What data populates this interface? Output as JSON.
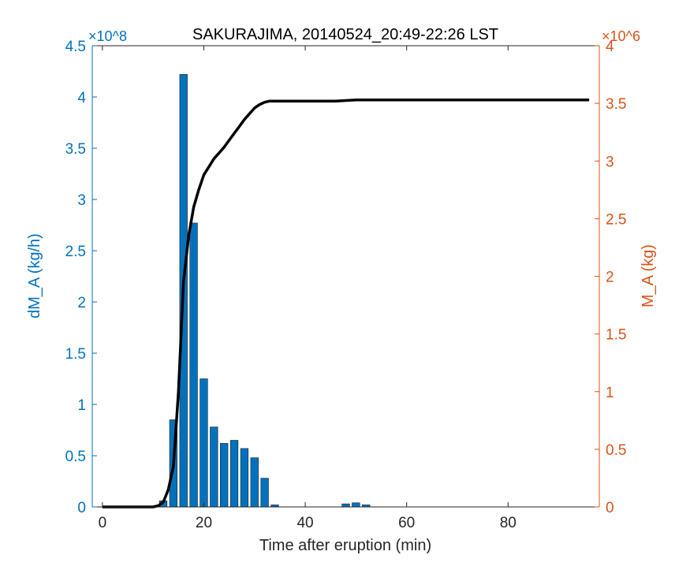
{
  "chart_data": {
    "type": "bar",
    "title": "SAKURAJIMA, 20140524_20:49-22:26 LST",
    "xlabel": "Time after eruption (min)",
    "ylabel_left": "dM_A (kg/h)",
    "ylabel_right": "M_A (kg)",
    "left_axis_exponent": "×10^8",
    "right_axis_exponent": "×10^6",
    "xlim": [
      -2,
      98
    ],
    "ylim_left": [
      0,
      4.5
    ],
    "ylim_right": [
      0,
      4
    ],
    "x_ticks": [
      0,
      20,
      40,
      60,
      80
    ],
    "y_left_ticks": [
      0,
      0.5,
      1,
      1.5,
      2,
      2.5,
      3,
      3.5,
      4,
      4.5
    ],
    "y_right_ticks": [
      0,
      0.5,
      1,
      1.5,
      2,
      2.5,
      3,
      3.5,
      4
    ],
    "x_tick_labels": [
      "0",
      "20",
      "40",
      "60",
      "80"
    ],
    "y_left_tick_labels": [
      "0",
      "0.5",
      "1",
      "1.5",
      "2",
      "2.5",
      "3",
      "3.5",
      "4",
      "4.5"
    ],
    "y_right_tick_labels": [
      "0",
      "0.5",
      "1",
      "1.5",
      "2",
      "2.5",
      "3",
      "3.5",
      "4"
    ],
    "bar_series": {
      "name": "dM_A",
      "axis": "left",
      "color": "#0072BD",
      "bar_width": 1.5,
      "x": [
        12,
        14,
        16,
        18,
        20,
        22,
        24,
        26,
        28,
        30,
        32,
        34,
        48,
        50,
        52
      ],
      "values": [
        0.06,
        0.85,
        4.22,
        2.77,
        1.25,
        0.78,
        0.62,
        0.65,
        0.57,
        0.48,
        0.28,
        0.02,
        0.03,
        0.04,
        0.02
      ]
    },
    "line_series": {
      "name": "M_A",
      "axis": "right",
      "color": "#000000",
      "x": [
        0,
        10,
        11,
        12,
        13,
        14,
        15,
        16,
        17,
        18,
        19,
        20,
        21,
        22,
        23,
        24,
        25,
        26,
        27,
        28,
        29,
        30,
        31,
        32,
        33,
        34,
        40,
        46,
        48,
        50,
        52,
        60,
        70,
        80,
        90,
        96
      ],
      "values": [
        0,
        0,
        0.01,
        0.04,
        0.15,
        0.35,
        1.0,
        1.95,
        2.35,
        2.6,
        2.75,
        2.88,
        2.95,
        3.02,
        3.07,
        3.12,
        3.18,
        3.24,
        3.3,
        3.36,
        3.41,
        3.46,
        3.49,
        3.51,
        3.52,
        3.52,
        3.52,
        3.52,
        3.525,
        3.53,
        3.53,
        3.53,
        3.53,
        3.53,
        3.53,
        3.53
      ]
    },
    "grid": false,
    "legend": "none"
  }
}
